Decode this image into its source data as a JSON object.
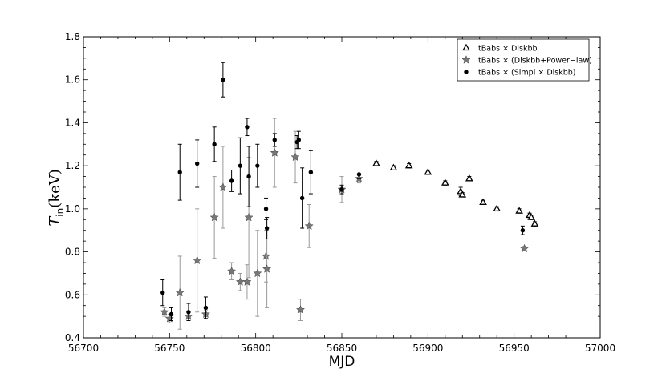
{
  "chart_data": {
    "type": "scatter",
    "xlabel": "MJD",
    "ylabel": {
      "main": "T",
      "sub": "in",
      "unit": "(keV)"
    },
    "xlim": [
      56700,
      57000
    ],
    "ylim": [
      0.4,
      1.8
    ],
    "xticks": [
      "56700",
      "56750",
      "56800",
      "56850",
      "56900",
      "56950",
      "57000"
    ],
    "yticks": [
      "0.4",
      "0.6",
      "0.8",
      "1.0",
      "1.2",
      "1.4",
      "1.6",
      "1.8"
    ],
    "legend_position": "top-right",
    "grid": false,
    "series": [
      {
        "name": "tBabs × Diskbb",
        "marker": "open-triangle",
        "color": "#000000",
        "points": [
          {
            "x": 56870,
            "y": 1.21,
            "err": 0.01
          },
          {
            "x": 56880,
            "y": 1.19,
            "err": 0.01
          },
          {
            "x": 56889,
            "y": 1.2,
            "err": 0.01
          },
          {
            "x": 56900,
            "y": 1.17,
            "err": 0.01
          },
          {
            "x": 56910,
            "y": 1.12,
            "err": 0.01
          },
          {
            "x": 56919,
            "y": 1.08,
            "err": 0.02
          },
          {
            "x": 56920,
            "y": 1.065,
            "err": 0.01
          },
          {
            "x": 56924,
            "y": 1.14,
            "err": 0.01
          },
          {
            "x": 56932,
            "y": 1.03,
            "err": 0.01
          },
          {
            "x": 56940,
            "y": 1.0,
            "err": 0.01
          },
          {
            "x": 56953,
            "y": 0.99,
            "err": 0.01
          },
          {
            "x": 56959,
            "y": 0.97,
            "err": 0.01
          },
          {
            "x": 56960,
            "y": 0.96,
            "err": 0.01
          },
          {
            "x": 56962,
            "y": 0.93,
            "err": 0.01
          }
        ]
      },
      {
        "name": "tBabs × (Diskbb+Power−law)",
        "marker": "star",
        "color": "#777777",
        "points": [
          {
            "x": 56747,
            "y": 0.52,
            "err": 0.02
          },
          {
            "x": 56750,
            "y": 0.49,
            "err": 0.02
          },
          {
            "x": 56756,
            "y": 0.61,
            "err": 0.17
          },
          {
            "x": 56761,
            "y": 0.5,
            "err": 0.02
          },
          {
            "x": 56766,
            "y": 0.76,
            "err": 0.24
          },
          {
            "x": 56771,
            "y": 0.51,
            "err": 0.02
          },
          {
            "x": 56776,
            "y": 0.96,
            "err": 0.19
          },
          {
            "x": 56781,
            "y": 1.1,
            "err": 0.19
          },
          {
            "x": 56786,
            "y": 0.71,
            "err": 0.04
          },
          {
            "x": 56791,
            "y": 0.66,
            "err": 0.04
          },
          {
            "x": 56795,
            "y": 0.66,
            "err": 0.08
          },
          {
            "x": 56796,
            "y": 0.96,
            "err": 0.28
          },
          {
            "x": 56801,
            "y": 0.7,
            "err": 0.2
          },
          {
            "x": 56806,
            "y": 0.78,
            "err": 0.12
          },
          {
            "x": 56806.5,
            "y": 0.72,
            "err": 0.18
          },
          {
            "x": 56811,
            "y": 1.26,
            "err": 0.16
          },
          {
            "x": 56823,
            "y": 1.24,
            "err": 0.12
          },
          {
            "x": 56826,
            "y": 0.53,
            "err": 0.05
          },
          {
            "x": 56831,
            "y": 0.92,
            "err": 0.1
          },
          {
            "x": 56850,
            "y": 1.09,
            "err": 0.06
          },
          {
            "x": 56860,
            "y": 1.14,
            "err": 0.02
          },
          {
            "x": 56956,
            "y": 0.815,
            "err": 0.01
          }
        ]
      },
      {
        "name": "tBabs × (Simpl × Diskbb)",
        "marker": "filled-circle",
        "color": "#000000",
        "points": [
          {
            "x": 56746,
            "y": 0.61,
            "err": 0.06
          },
          {
            "x": 56751,
            "y": 0.51,
            "err": 0.03
          },
          {
            "x": 56756,
            "y": 1.17,
            "err": 0.13
          },
          {
            "x": 56761,
            "y": 0.52,
            "err": 0.04
          },
          {
            "x": 56766,
            "y": 1.21,
            "err": 0.11
          },
          {
            "x": 56771,
            "y": 0.54,
            "err": 0.05
          },
          {
            "x": 56776,
            "y": 1.3,
            "err": 0.08
          },
          {
            "x": 56781,
            "y": 1.6,
            "err": 0.08
          },
          {
            "x": 56786,
            "y": 1.13,
            "err": 0.05
          },
          {
            "x": 56791,
            "y": 1.2,
            "err": 0.13
          },
          {
            "x": 56795,
            "y": 1.38,
            "err": 0.04
          },
          {
            "x": 56796,
            "y": 1.15,
            "err": 0.14
          },
          {
            "x": 56801,
            "y": 1.2,
            "err": 0.1
          },
          {
            "x": 56806,
            "y": 1.0,
            "err": 0.05
          },
          {
            "x": 56806.5,
            "y": 0.91,
            "err": 0.05
          },
          {
            "x": 56811,
            "y": 1.32,
            "err": 0.03
          },
          {
            "x": 56824,
            "y": 1.31,
            "err": 0.03
          },
          {
            "x": 56825,
            "y": 1.32,
            "err": 0.04
          },
          {
            "x": 56827,
            "y": 1.05,
            "err": 0.14
          },
          {
            "x": 56832,
            "y": 1.17,
            "err": 0.1
          },
          {
            "x": 56850,
            "y": 1.09,
            "err": 0.02
          },
          {
            "x": 56860,
            "y": 1.16,
            "err": 0.02
          },
          {
            "x": 56955,
            "y": 0.9,
            "err": 0.02
          }
        ]
      }
    ]
  }
}
